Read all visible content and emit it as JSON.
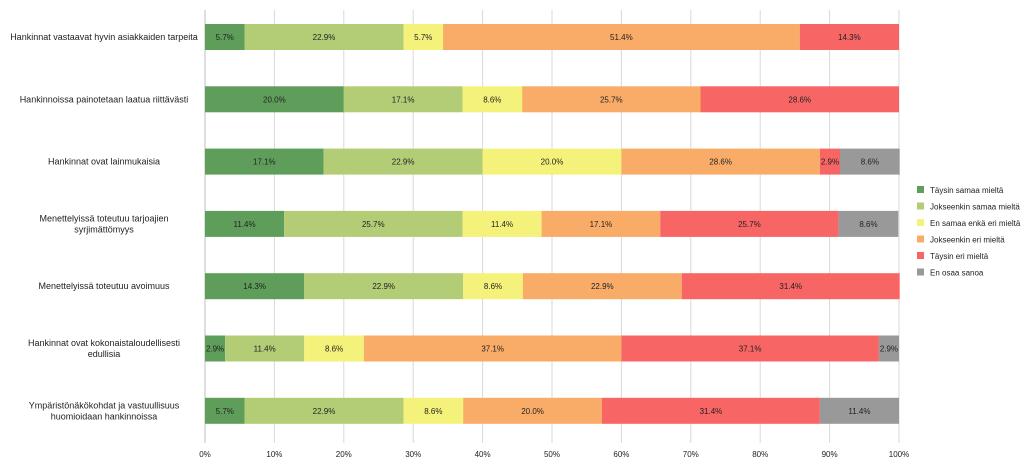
{
  "chart_data": {
    "type": "bar",
    "orientation": "horizontal",
    "stacked": true,
    "percent_stacked": true,
    "title": "",
    "xlabel": "",
    "ylabel": "",
    "xlim": [
      0,
      100
    ],
    "x_ticks": [
      0,
      10,
      20,
      30,
      40,
      50,
      60,
      70,
      80,
      90,
      100
    ],
    "x_tick_labels": [
      "0%",
      "10%",
      "20%",
      "30%",
      "40%",
      "50%",
      "60%",
      "70%",
      "80%",
      "90%",
      "100%"
    ],
    "grid": true,
    "legend_position": "right",
    "categories": [
      "Hankinnat vastaavat hyvin asiakkaiden tarpeita",
      "Hankinnoissa painotetaan laatua riittävästi",
      "Hankinnat ovat lainmukaisia",
      "Menettelyissä toteutuu tarjoajien syrjimättömyys",
      "Menettelyissä toteutuu avoimuus",
      "Hankinnat ovat kokonaistaloudellisesti edullisia",
      "Ympäristönäkökohdat ja vastuullisuus huomioidaan hankinnoissa"
    ],
    "series": [
      {
        "name": "Täysin samaa mieltä",
        "color": "#5e9e5a",
        "values": [
          5.7,
          20.0,
          17.1,
          11.4,
          14.3,
          2.9,
          5.7
        ],
        "labels": [
          "5.7%",
          "20.0%",
          "17.1%",
          "11.4%",
          "14.3%",
          "2.9%",
          "5.7%"
        ]
      },
      {
        "name": "Jokseenkin samaa mieltä",
        "color": "#b3cc76",
        "values": [
          22.9,
          17.1,
          22.9,
          25.7,
          22.9,
          11.4,
          22.9
        ],
        "labels": [
          "22.9%",
          "17.1%",
          "22.9%",
          "25.7%",
          "22.9%",
          "11.4%",
          "22.9%"
        ]
      },
      {
        "name": "En samaa enkä eri mieltä",
        "color": "#f4f27a",
        "values": [
          5.7,
          8.6,
          20.0,
          11.4,
          8.6,
          8.6,
          8.6
        ],
        "labels": [
          "5.7%",
          "8.6%",
          "20.0%",
          "11.4%",
          "8.6%",
          "8.6%",
          "8.6%"
        ]
      },
      {
        "name": "Jokseenkin eri mieltä",
        "color": "#f8ac68",
        "values": [
          51.4,
          25.7,
          28.6,
          17.1,
          22.9,
          37.1,
          20.0
        ],
        "labels": [
          "51.4%",
          "25.7%",
          "28.6%",
          "17.1%",
          "22.9%",
          "37.1%",
          "20.0%"
        ]
      },
      {
        "name": "Täysin eri mieltä",
        "color": "#f76564",
        "values": [
          14.3,
          28.6,
          2.9,
          25.7,
          31.4,
          37.1,
          31.4
        ],
        "labels": [
          "14.3%",
          "28.6%",
          "2.9%",
          "25.7%",
          "31.4%",
          "37.1%",
          "31.4%"
        ]
      },
      {
        "name": "En osaa sanoa",
        "color": "#999999",
        "values": [
          0,
          0,
          8.6,
          8.6,
          0,
          2.9,
          11.4
        ],
        "labels": [
          "",
          "",
          "8.6%",
          "8.6%",
          "",
          "2.9%",
          "11.4%"
        ]
      }
    ]
  }
}
